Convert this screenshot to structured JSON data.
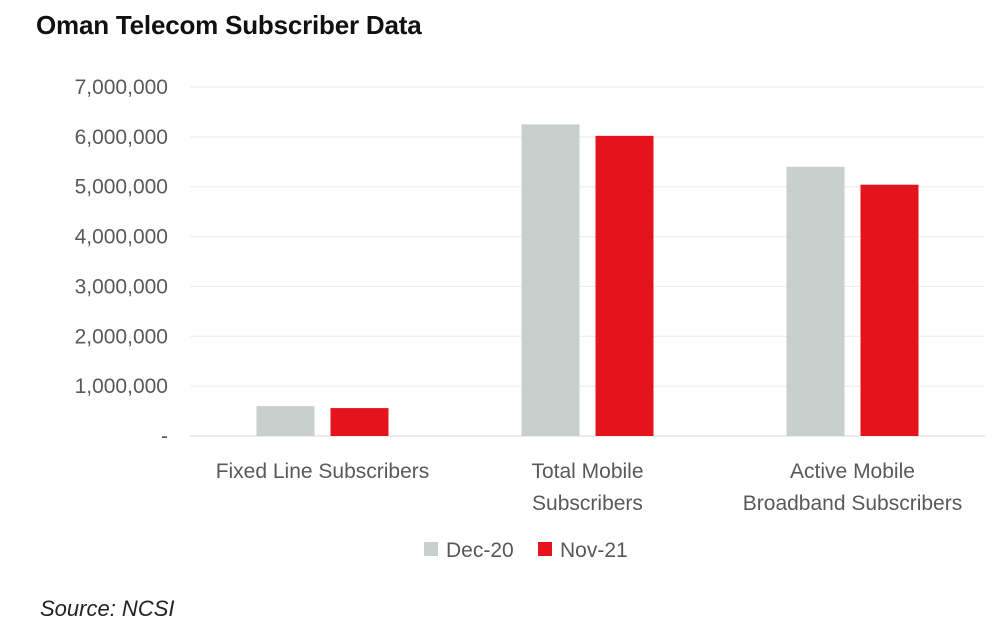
{
  "chart_data": {
    "type": "bar",
    "title": "Oman Telecom Subscriber Data",
    "categories": [
      [
        "Fixed Line Subscribers"
      ],
      [
        "Total Mobile",
        "Subscribers"
      ],
      [
        "Active Mobile",
        "Broadband Subscribers"
      ]
    ],
    "series": [
      {
        "name": "Dec-20",
        "color": "#c9cfcc",
        "values": [
          600000,
          6250000,
          5400000
        ]
      },
      {
        "name": "Nov-21",
        "color": "#e5131b",
        "values": [
          560000,
          6020000,
          5040000
        ]
      }
    ],
    "ylim": [
      0,
      7000000
    ],
    "yticks": [
      {
        "value": 0,
        "label": "-"
      },
      {
        "value": 1000000,
        "label": "1,000,000"
      },
      {
        "value": 2000000,
        "label": "2,000,000"
      },
      {
        "value": 3000000,
        "label": "3,000,000"
      },
      {
        "value": 4000000,
        "label": "4,000,000"
      },
      {
        "value": 5000000,
        "label": "5,000,000"
      },
      {
        "value": 6000000,
        "label": "6,000,000"
      },
      {
        "value": 7000000,
        "label": "7,000,000"
      }
    ],
    "grid": true,
    "legend": "bottom-center",
    "source": "Source: NCSI"
  }
}
